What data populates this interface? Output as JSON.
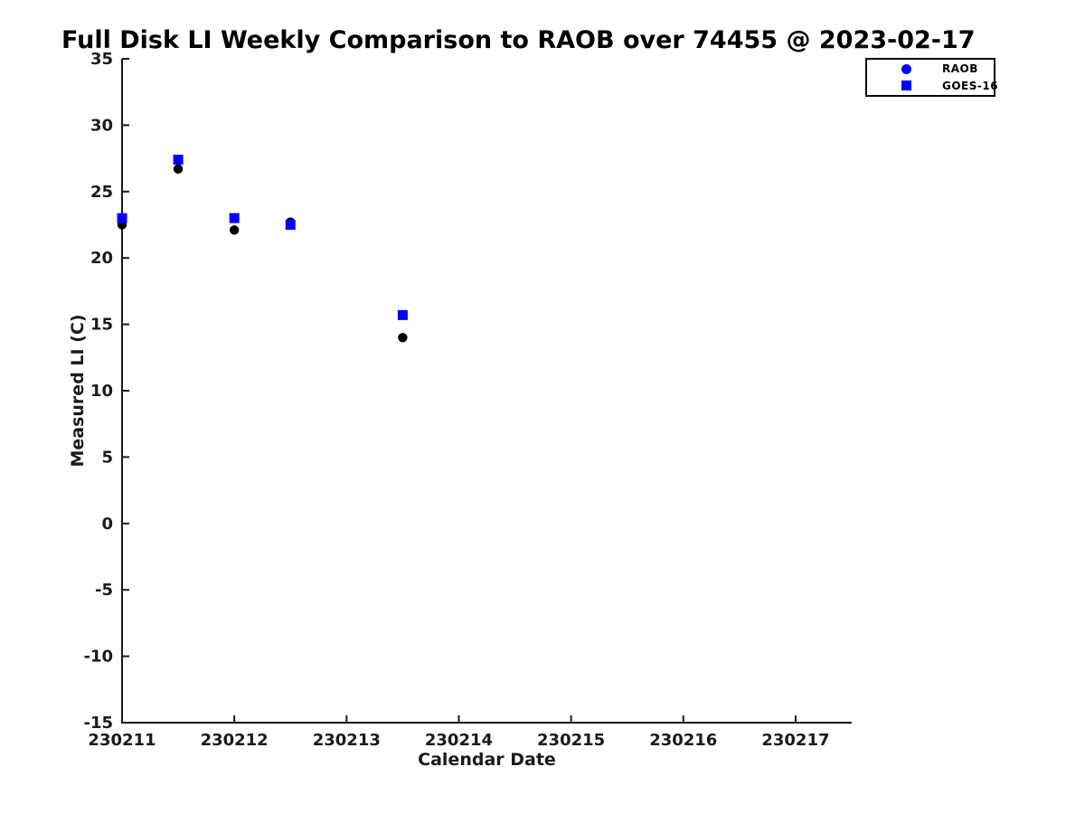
{
  "chart_data": {
    "type": "scatter",
    "title": "Full Disk LI Weekly Comparison to RAOB over 74455 @ 2023-02-17",
    "xlabel": "Calendar Date",
    "ylabel": "Measured LI (C)",
    "xlim": [
      230211,
      230217.5
    ],
    "ylim": [
      -15,
      35
    ],
    "xticks": [
      230211,
      230212,
      230213,
      230214,
      230215,
      230216,
      230217
    ],
    "yticks": [
      -15,
      -10,
      -5,
      0,
      5,
      10,
      15,
      20,
      25,
      30,
      35
    ],
    "grid": false,
    "legend_position": "top-right",
    "axis_color": "#1a1a1a",
    "background_color": "#ffffff",
    "series": [
      {
        "name": "RAOB",
        "marker": "circle",
        "plot_color": "#000000",
        "legend_color": "#0000ff",
        "x": [
          230211,
          230211.5,
          230212,
          230212.5,
          230213.5
        ],
        "y": [
          22.5,
          26.7,
          22.1,
          22.7,
          14.0
        ]
      },
      {
        "name": "GOES-16",
        "marker": "square",
        "plot_color": "#0000ff",
        "legend_color": "#0000ff",
        "x": [
          230211,
          230211.5,
          230212,
          230212.5,
          230213.5
        ],
        "y": [
          23.0,
          27.4,
          23.0,
          22.5,
          15.7
        ]
      }
    ]
  }
}
